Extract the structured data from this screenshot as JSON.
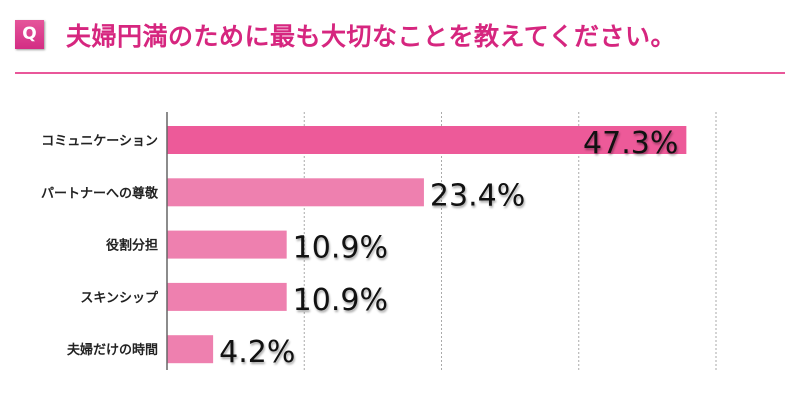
{
  "header": {
    "q_label": "Q",
    "title": "夫婦円満のために最も大切なことを教えてください。"
  },
  "colors": {
    "accent": "#d6267f",
    "first_bar": "#ed5a99",
    "bar": "#ee80af"
  },
  "chart_data": {
    "type": "bar",
    "orientation": "horizontal",
    "categories": [
      "コミュニケーション",
      "パートナーへの尊敬",
      "役割分担",
      "スキンシップ",
      "夫婦だけの時間"
    ],
    "values": [
      47.3,
      23.4,
      10.9,
      10.9,
      4.2
    ],
    "labels": [
      "47.3%",
      "23.4%",
      "10.9%",
      "10.9%",
      "4.2%"
    ],
    "xlim": [
      0,
      50
    ],
    "grid": true,
    "gridlines": [
      12.5,
      25,
      37.5,
      50
    ]
  }
}
